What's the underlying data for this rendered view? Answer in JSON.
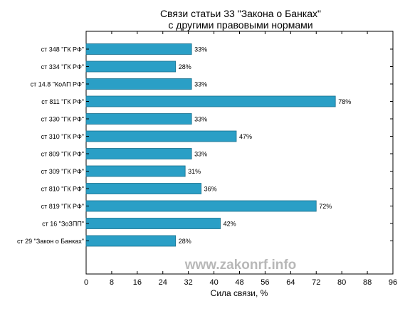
{
  "chart_data": {
    "type": "bar",
    "orientation": "horizontal",
    "title_lines": [
      "Связи статьи 33 \"Закона о Банках\"",
      "с другими правовыми нормами"
    ],
    "xlabel": "Сила связи, %",
    "ylabel": "",
    "xlim": [
      0,
      96
    ],
    "xticks": [
      0,
      8,
      16,
      24,
      32,
      40,
      48,
      56,
      64,
      72,
      80,
      88,
      96
    ],
    "grid": false,
    "watermark": "www.zakonrf.info",
    "bar_color": "#2a9fc6",
    "categories": [
      "ст 348 \"ГК РФ\"",
      "ст 334 \"ГК РФ\"",
      "ст 14.8 \"КоАП РФ\"",
      "ст 811 \"ГК РФ\"",
      "ст 330 \"ГК РФ\"",
      "ст 310 \"ГК РФ\"",
      "ст 809 \"ГК РФ\"",
      "ст 309 \"ГК РФ\"",
      "ст 810 \"ГК РФ\"",
      "ст 819 \"ГК РФ\"",
      "ст 16 \"ЗоЗПП\"",
      "ст 29 \"Закон о Банках\""
    ],
    "values": [
      33,
      28,
      33,
      78,
      33,
      47,
      33,
      31,
      36,
      72,
      42,
      28
    ],
    "value_labels": [
      "33%",
      "28%",
      "33%",
      "78%",
      "33%",
      "47%",
      "33%",
      "31%",
      "36%",
      "72%",
      "42%",
      "28%"
    ]
  }
}
